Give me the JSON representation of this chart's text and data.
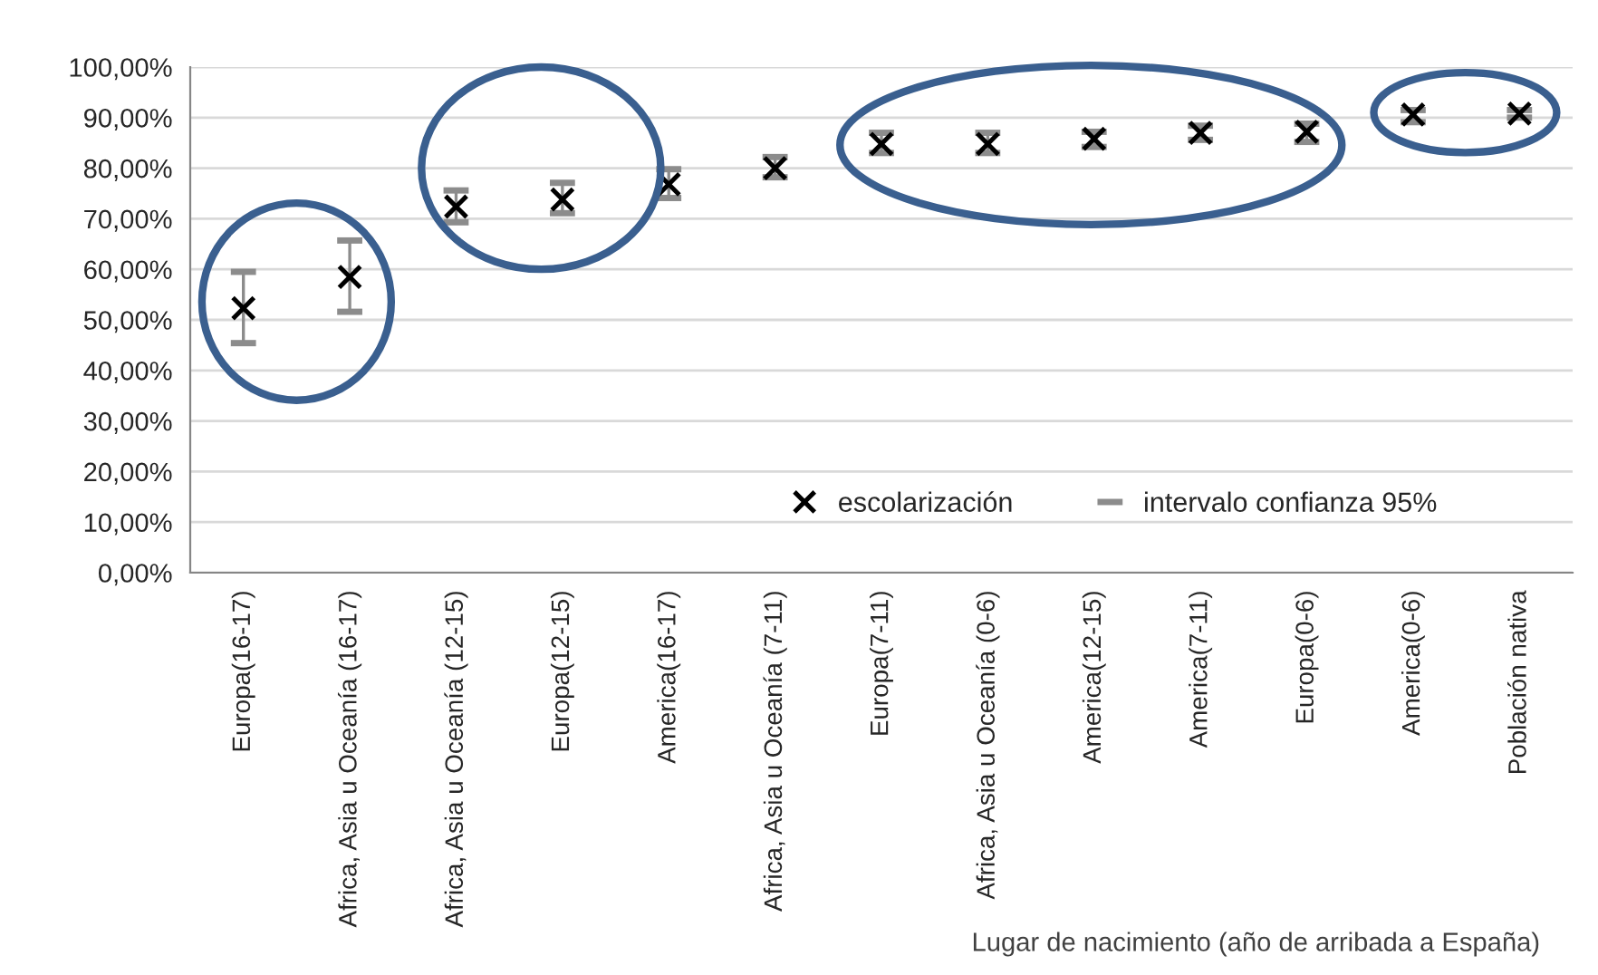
{
  "chart_data": {
    "type": "scatter",
    "xlabel": "Lugar de nacimiento (año de arribada a España)",
    "annotations": [
      "intervalo confianza 95%"
    ],
    "categories": [
      "Europa(16-17)",
      "Africa, Asia u Oceanía (16-17)",
      "Africa, Asia u Oceanía (12-15)",
      "Europa(12-15)",
      "America(16-17)",
      "Africa, Asia u Oceanía (7-11)",
      "Europa(7-11)",
      "Africa, Asia u Oceanía (0-6)",
      "America(12-15)",
      "America(7-11)",
      "Europa(0-6)",
      "America(0-6)",
      "Población nativa"
    ],
    "series": [
      {
        "name": "escolarización",
        "color": "#000000",
        "marker": "cross",
        "values": [
          52.3,
          58.5,
          72.4,
          73.8,
          76.8,
          80.0,
          84.8,
          84.8,
          85.8,
          87.0,
          87.2,
          90.6,
          90.8
        ],
        "errors": [
          [
            45.4,
            59.5
          ],
          [
            51.6,
            65.7
          ],
          [
            69.3,
            75.6
          ],
          [
            71.1,
            77.1
          ],
          [
            74.1,
            79.8
          ],
          [
            78.2,
            82.2
          ],
          [
            83.0,
            87.0
          ],
          [
            83.0,
            87.0
          ],
          [
            84.2,
            87.2
          ],
          [
            85.6,
            88.4
          ],
          [
            85.2,
            88.8
          ],
          [
            89.1,
            91.5
          ],
          [
            90.0,
            91.5
          ]
        ]
      }
    ],
    "ylim": [
      0,
      100
    ],
    "yticks": [
      {
        "value": 0,
        "label": "0,00%"
      },
      {
        "value": 10,
        "label": "10,00%"
      },
      {
        "value": 20,
        "label": "20,00%"
      },
      {
        "value": 30,
        "label": "30,00%"
      },
      {
        "value": 40,
        "label": "40,00%"
      },
      {
        "value": 50,
        "label": "50,00%"
      },
      {
        "value": 60,
        "label": "60,00%"
      },
      {
        "value": 70,
        "label": "70,00%"
      },
      {
        "value": 80,
        "label": "80,00%"
      },
      {
        "value": 90,
        "label": "90,00%"
      },
      {
        "value": 100,
        "label": "100,00%"
      }
    ],
    "grid": "y",
    "legend": "bottom right"
  }
}
